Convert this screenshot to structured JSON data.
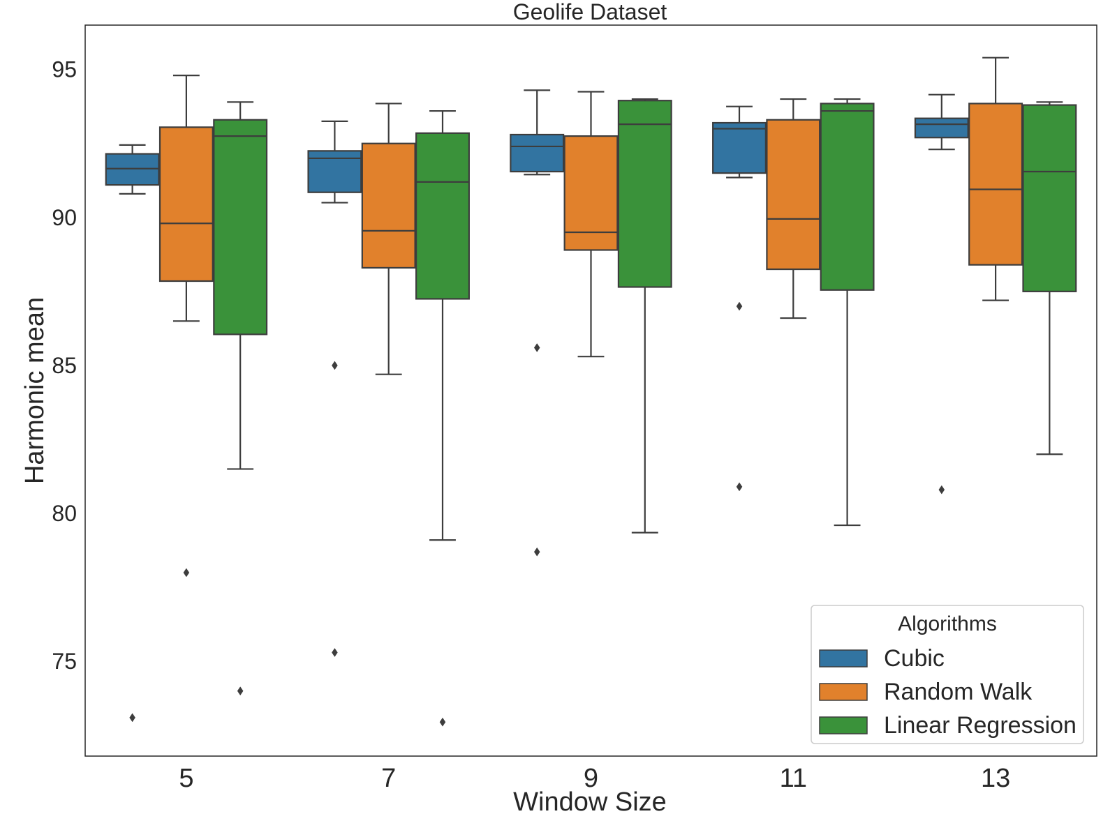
{
  "chart_data": {
    "type": "box",
    "title": "Geolife Dataset",
    "xlabel": "Window Size",
    "ylabel": "Harmonic mean",
    "categories": [
      "5",
      "7",
      "9",
      "11",
      "13"
    ],
    "ylim": [
      71.8,
      96.5
    ],
    "yticks": [
      75,
      80,
      85,
      90,
      95
    ],
    "grid": false,
    "legend": {
      "title": "Algorithms",
      "placement": "lower-right"
    },
    "series": [
      {
        "name": "Cubic",
        "color": "#3274a1",
        "boxes": [
          {
            "whisker_low": 90.8,
            "q1": 91.1,
            "median": 91.65,
            "q3": 92.15,
            "whisker_high": 92.45,
            "outliers": [
              73.1
            ]
          },
          {
            "whisker_low": 90.5,
            "q1": 90.85,
            "median": 92.0,
            "q3": 92.25,
            "whisker_high": 93.25,
            "outliers": [
              85.0,
              75.3
            ]
          },
          {
            "whisker_low": 91.45,
            "q1": 91.55,
            "median": 92.4,
            "q3": 92.8,
            "whisker_high": 94.3,
            "outliers": [
              85.6,
              78.7
            ]
          },
          {
            "whisker_low": 91.35,
            "q1": 91.5,
            "median": 93.0,
            "q3": 93.2,
            "whisker_high": 93.75,
            "outliers": [
              87.0,
              80.9
            ]
          },
          {
            "whisker_low": 92.3,
            "q1": 92.7,
            "median": 93.15,
            "q3": 93.35,
            "whisker_high": 94.15,
            "outliers": [
              80.8
            ]
          }
        ]
      },
      {
        "name": "Random Walk",
        "color": "#e1812c",
        "boxes": [
          {
            "whisker_low": 86.5,
            "q1": 87.85,
            "median": 89.8,
            "q3": 93.05,
            "whisker_high": 94.8,
            "outliers": [
              78.0
            ]
          },
          {
            "whisker_low": 84.7,
            "q1": 88.3,
            "median": 89.55,
            "q3": 92.5,
            "whisker_high": 93.85,
            "outliers": []
          },
          {
            "whisker_low": 85.3,
            "q1": 88.9,
            "median": 89.5,
            "q3": 92.75,
            "whisker_high": 94.25,
            "outliers": []
          },
          {
            "whisker_low": 86.6,
            "q1": 88.25,
            "median": 89.95,
            "q3": 93.3,
            "whisker_high": 94.0,
            "outliers": []
          },
          {
            "whisker_low": 87.2,
            "q1": 88.4,
            "median": 90.95,
            "q3": 93.85,
            "whisker_high": 95.4,
            "outliers": []
          }
        ]
      },
      {
        "name": "Linear Regression",
        "color": "#3a923a",
        "boxes": [
          {
            "whisker_low": 81.5,
            "q1": 86.05,
            "median": 92.75,
            "q3": 93.3,
            "whisker_high": 93.9,
            "outliers": [
              74.0
            ]
          },
          {
            "whisker_low": 79.1,
            "q1": 87.25,
            "median": 91.2,
            "q3": 92.85,
            "whisker_high": 93.6,
            "outliers": [
              72.95
            ]
          },
          {
            "whisker_low": 79.35,
            "q1": 87.65,
            "median": 93.15,
            "q3": 93.95,
            "whisker_high": 94.0,
            "outliers": []
          },
          {
            "whisker_low": 79.6,
            "q1": 87.55,
            "median": 93.6,
            "q3": 93.85,
            "whisker_high": 94.0,
            "outliers": []
          },
          {
            "whisker_low": 82.0,
            "q1": 87.5,
            "median": 91.55,
            "q3": 93.8,
            "whisker_high": 93.9,
            "outliers": []
          }
        ]
      }
    ]
  }
}
